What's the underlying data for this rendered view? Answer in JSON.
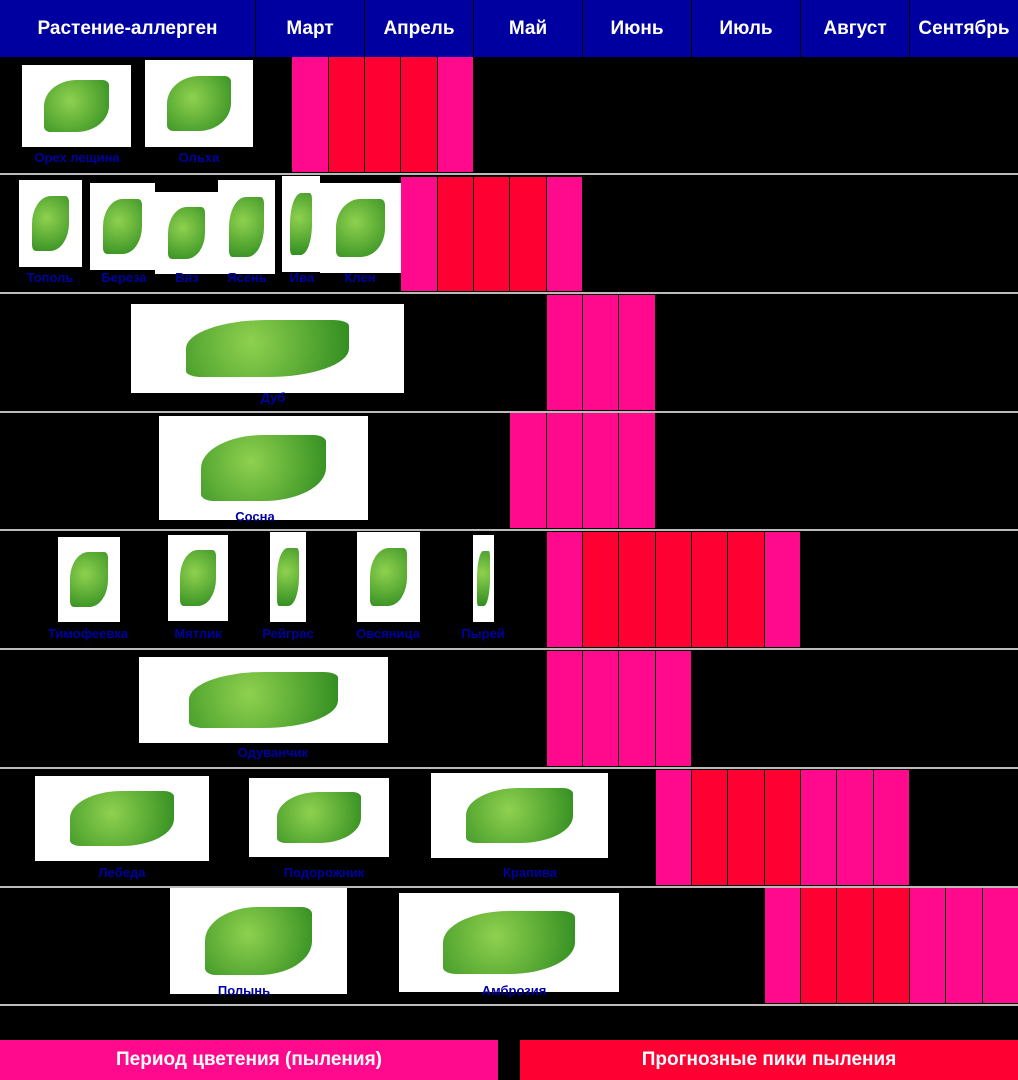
{
  "header": {
    "plant_column": "Растение-аллерген",
    "months": [
      "Март",
      "Апрель",
      "Май",
      "Июнь",
      "Июль",
      "Август",
      "Сентябрь"
    ]
  },
  "colors": {
    "header": "#0000a0",
    "bloom": "#ff0a8c",
    "peak": "#ff0033",
    "label": "#0000a0"
  },
  "legend": {
    "bloom": "Период цветения (пыления)",
    "peak": "Прогнозные пики пыления"
  },
  "chart_data": {
    "type": "table",
    "unit": "decade of month (1-3)",
    "rows": [
      {
        "plants": [
          "Орех лещина",
          "Ольха"
        ],
        "periods": [
          [
            "Март",
            2,
            "bloom"
          ],
          [
            "Март",
            3,
            "peak"
          ],
          [
            "Апрель",
            1,
            "peak"
          ],
          [
            "Апрель",
            2,
            "peak"
          ],
          [
            "Апрель",
            3,
            "bloom"
          ]
        ]
      },
      {
        "plants": [
          "Тополь",
          "Береза",
          "Вяз",
          "Ясень",
          "Ива",
          "Клен"
        ],
        "periods": [
          [
            "Апрель",
            2,
            "bloom"
          ],
          [
            "Апрель",
            3,
            "peak"
          ],
          [
            "Май",
            1,
            "peak"
          ],
          [
            "Май",
            2,
            "peak"
          ],
          [
            "Май",
            3,
            "bloom"
          ]
        ]
      },
      {
        "plants": [
          "Дуб"
        ],
        "periods": [
          [
            "Май",
            3,
            "bloom"
          ],
          [
            "Июнь",
            1,
            "bloom"
          ],
          [
            "Июнь",
            2,
            "bloom"
          ]
        ]
      },
      {
        "plants": [
          "Сосна"
        ],
        "periods": [
          [
            "Май",
            2,
            "bloom"
          ],
          [
            "Май",
            3,
            "bloom"
          ],
          [
            "Июнь",
            1,
            "bloom"
          ],
          [
            "Июнь",
            2,
            "bloom"
          ]
        ]
      },
      {
        "plants": [
          "Тимофеевка",
          "Мятлик",
          "Рейграс",
          "Овсяница",
          "Пырей"
        ],
        "periods": [
          [
            "Май",
            3,
            "bloom"
          ],
          [
            "Июнь",
            1,
            "peak"
          ],
          [
            "Июнь",
            2,
            "peak"
          ],
          [
            "Июнь",
            3,
            "peak"
          ],
          [
            "Июль",
            1,
            "peak"
          ],
          [
            "Июль",
            2,
            "peak"
          ],
          [
            "Июль",
            3,
            "bloom"
          ]
        ]
      },
      {
        "plants": [
          "Одуванчик"
        ],
        "periods": [
          [
            "Май",
            3,
            "bloom"
          ],
          [
            "Июнь",
            1,
            "bloom"
          ],
          [
            "Июнь",
            2,
            "bloom"
          ],
          [
            "Июнь",
            3,
            "bloom"
          ]
        ]
      },
      {
        "plants": [
          "Лебеда",
          "Подорожник",
          "Крапива"
        ],
        "periods": [
          [
            "Июнь",
            3,
            "bloom"
          ],
          [
            "Июль",
            1,
            "peak"
          ],
          [
            "Июль",
            2,
            "peak"
          ],
          [
            "Июль",
            3,
            "peak"
          ],
          [
            "Август",
            1,
            "bloom"
          ],
          [
            "Август",
            2,
            "bloom"
          ],
          [
            "Август",
            3,
            "bloom"
          ]
        ]
      },
      {
        "plants": [
          "Полынь",
          "Амброзия"
        ],
        "periods": [
          [
            "Июль",
            3,
            "bloom"
          ],
          [
            "Август",
            1,
            "peak"
          ],
          [
            "Август",
            2,
            "peak"
          ],
          [
            "Август",
            3,
            "peak"
          ],
          [
            "Сентябрь",
            1,
            "bloom"
          ],
          [
            "Сентябрь",
            2,
            "bloom"
          ],
          [
            "Сентябрь",
            3,
            "bloom"
          ]
        ]
      }
    ]
  }
}
